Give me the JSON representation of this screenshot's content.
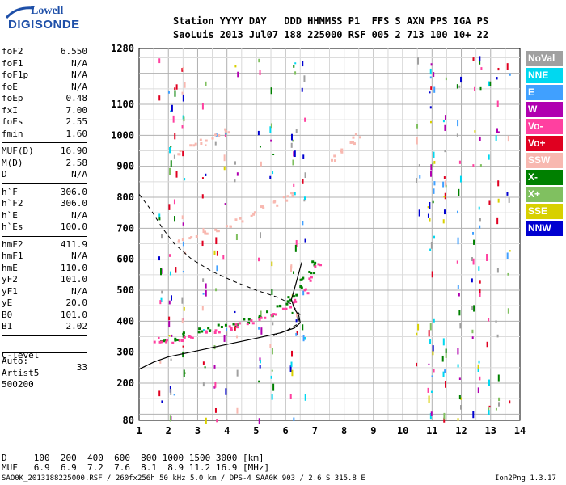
{
  "logo": {
    "line1": "Lowell",
    "line2": "DIGISONDE"
  },
  "header": {
    "row1": "Station YYYY DAY   DDD HHMMSS P1  FFS S AXN PPS IGA PS",
    "row2": "SaoLuis 2013 Jul07 188 225000 RSF 005 2 713 100 10+ 22"
  },
  "params": {
    "group1": [
      {
        "label": "foF2",
        "value": "6.550"
      },
      {
        "label": "foF1",
        "value": "N/A"
      },
      {
        "label": "foF1p",
        "value": "N/A"
      },
      {
        "label": "foE",
        "value": "N/A"
      },
      {
        "label": "foEp",
        "value": "0.48"
      },
      {
        "label": "fxI",
        "value": "7.00"
      },
      {
        "label": "foEs",
        "value": "2.55"
      },
      {
        "label": "fmin",
        "value": "1.60"
      }
    ],
    "group2": [
      {
        "label": "MUF(D)",
        "value": "16.90"
      },
      {
        "label": "M(D)",
        "value": "2.58"
      },
      {
        "label": "D",
        "value": "N/A"
      }
    ],
    "group3": [
      {
        "label": "h`F",
        "value": "306.0"
      },
      {
        "label": "h`F2",
        "value": "306.0"
      },
      {
        "label": "h`E",
        "value": "N/A"
      },
      {
        "label": "h`Es",
        "value": "100.0"
      }
    ],
    "group4": [
      {
        "label": "hmF2",
        "value": "411.9"
      },
      {
        "label": "hmF1",
        "value": "N/A"
      },
      {
        "label": "hmE",
        "value": "110.0"
      },
      {
        "label": "yF2",
        "value": "101.0"
      },
      {
        "label": "yF1",
        "value": "N/A"
      },
      {
        "label": "yE",
        "value": "20.0"
      },
      {
        "label": "B0",
        "value": "101.0"
      },
      {
        "label": "B1",
        "value": "2.02"
      }
    ],
    "clevel": {
      "label": "C-level",
      "value": "33"
    },
    "auto": [
      "Auto:",
      "Artist5",
      "500200"
    ]
  },
  "legend": [
    {
      "label": "NoVal",
      "color": "#a0a0a0"
    },
    {
      "label": "NNE",
      "color": "#00d8f0"
    },
    {
      "label": "E",
      "color": "#40a0ff"
    },
    {
      "label": "W",
      "color": "#b000b0"
    },
    {
      "label": "Vo-",
      "color": "#ff40a0"
    },
    {
      "label": "Vo+",
      "color": "#e00020"
    },
    {
      "label": "SSW",
      "color": "#f8b8b0"
    },
    {
      "label": "X-",
      "color": "#008000"
    },
    {
      "label": "X+",
      "color": "#80c060"
    },
    {
      "label": "SSE",
      "color": "#d8d000"
    },
    {
      "label": "NNW",
      "color": "#0000d0"
    }
  ],
  "bottom": {
    "row_d": "D     100  200  400  600  800 1000 1500 3000 [km]",
    "row_muf": "MUF   6.9  6.9  7.2  7.6  8.1  8.9 11.2 16.9 [MHz]"
  },
  "footer": {
    "left": "SAO0K_2013188225000.RSF / 260fx256h 50 kHz 5.0 km / DPS-4 SAA0K 903 / 2.6 S 315.8 E",
    "right": "Ion2Png 1.3.17"
  },
  "chart_data": {
    "type": "scatter",
    "title": "",
    "xlabel": "",
    "ylabel": "",
    "x_ticks": [
      1,
      2,
      3,
      4,
      5,
      6,
      7,
      8,
      9,
      10,
      11,
      12,
      13,
      14
    ],
    "y_ticks": [
      80,
      200,
      300,
      400,
      500,
      600,
      700,
      800,
      900,
      1000,
      1100,
      1280
    ],
    "xlim": [
      1,
      14
    ],
    "ylim": [
      80,
      1280
    ],
    "grid": true,
    "series": [
      {
        "name": "X-",
        "color": "#008000",
        "points": [
          [
            1.8,
            338
          ],
          [
            2.2,
            348
          ],
          [
            2.6,
            360
          ],
          [
            3.0,
            372
          ],
          [
            3.4,
            380
          ],
          [
            3.8,
            388
          ],
          [
            4.2,
            396
          ],
          [
            4.6,
            404
          ],
          [
            5.0,
            414
          ],
          [
            5.4,
            428
          ],
          [
            5.8,
            448
          ],
          [
            6.0,
            466
          ],
          [
            6.2,
            488
          ],
          [
            6.4,
            512
          ],
          [
            6.6,
            540
          ],
          [
            6.8,
            565
          ],
          [
            7.0,
            588
          ]
        ]
      },
      {
        "name": "Vo-",
        "color": "#ff40a0",
        "points": [
          [
            1.6,
            332
          ],
          [
            2.0,
            336
          ],
          [
            2.4,
            346
          ],
          [
            2.8,
            356
          ],
          [
            3.2,
            366
          ],
          [
            3.6,
            374
          ],
          [
            4.0,
            382
          ],
          [
            4.4,
            390
          ],
          [
            4.8,
            400
          ],
          [
            5.2,
            410
          ],
          [
            5.6,
            424
          ],
          [
            6.0,
            446
          ],
          [
            6.3,
            470
          ],
          [
            6.6,
            500
          ],
          [
            6.9,
            540
          ],
          [
            7.1,
            580
          ]
        ]
      },
      {
        "name": "SSW",
        "color": "#f8b8b0",
        "points": [
          [
            2.4,
            660
          ],
          [
            2.8,
            672
          ],
          [
            3.2,
            686
          ],
          [
            3.6,
            700
          ],
          [
            4.0,
            714
          ],
          [
            4.4,
            730
          ],
          [
            4.8,
            748
          ],
          [
            5.2,
            766
          ],
          [
            5.6,
            784
          ],
          [
            6.0,
            800
          ],
          [
            6.3,
            812
          ],
          [
            7.6,
            930
          ],
          [
            7.9,
            950
          ],
          [
            8.2,
            975
          ],
          [
            8.4,
            1000
          ],
          [
            2.4,
            950
          ],
          [
            2.8,
            970
          ],
          [
            3.2,
            985
          ],
          [
            3.6,
            1000
          ],
          [
            4.0,
            1015
          ]
        ]
      }
    ],
    "profile_curves": [
      {
        "name": "true-height profile",
        "points": [
          [
            1.0,
            245
          ],
          [
            1.5,
            268
          ],
          [
            2.0,
            285
          ],
          [
            3.0,
            305
          ],
          [
            4.0,
            325
          ],
          [
            5.0,
            345
          ],
          [
            5.8,
            362
          ],
          [
            6.3,
            378
          ],
          [
            6.5,
            395
          ],
          [
            6.45,
            418
          ],
          [
            6.3,
            440
          ],
          [
            6.2,
            470
          ],
          [
            6.35,
            520
          ],
          [
            6.55,
            590
          ]
        ]
      },
      {
        "name": "model profile (dashed)",
        "points": [
          [
            1.0,
            810
          ],
          [
            1.4,
            760
          ],
          [
            1.8,
            700
          ],
          [
            2.2,
            650
          ],
          [
            2.8,
            600
          ],
          [
            3.5,
            560
          ],
          [
            4.2,
            530
          ],
          [
            5.0,
            500
          ],
          [
            5.7,
            478
          ],
          [
            6.2,
            456
          ],
          [
            6.5,
            420
          ],
          [
            6.4,
            390
          ],
          [
            6.0,
            368
          ],
          [
            5.5,
            350
          ]
        ]
      }
    ]
  }
}
